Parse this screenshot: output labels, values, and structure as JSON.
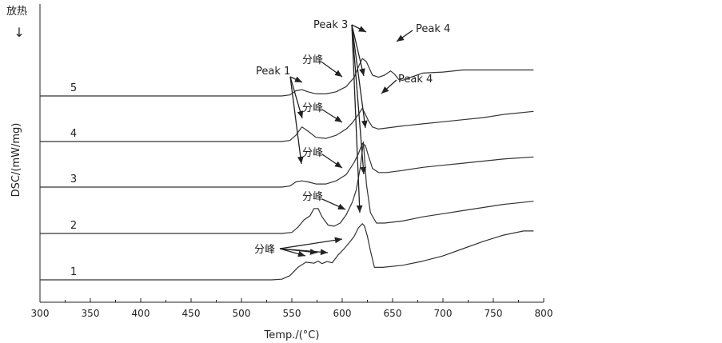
{
  "chart_data": {
    "type": "line",
    "title": "",
    "xlabel": "Temp./(°C)",
    "ylabel": "DSC/(mW/mg)",
    "exo_label": "放热",
    "exo_arrow_glyph": "↓",
    "xlim": [
      300,
      800
    ],
    "xticks": [
      300,
      350,
      400,
      450,
      500,
      550,
      600,
      650,
      700,
      750,
      800
    ],
    "yticks": [],
    "grid": false,
    "series": [
      {
        "name": "1",
        "x": [
          300,
          340,
          400,
          450,
          500,
          530,
          540,
          548,
          556,
          564,
          572,
          576,
          580,
          585,
          590,
          596,
          602,
          608,
          612,
          616,
          620,
          622,
          625,
          628,
          632,
          640,
          660,
          680,
          700,
          720,
          740,
          760,
          780,
          790
        ],
        "y": [
          0,
          0,
          0,
          0,
          0,
          0,
          0.03,
          0.2,
          0.6,
          0.85,
          0.8,
          0.9,
          0.78,
          0.88,
          0.82,
          1.2,
          1.5,
          1.85,
          2.1,
          2.5,
          2.7,
          2.6,
          2.1,
          1.4,
          0.6,
          0.6,
          0.7,
          0.9,
          1.15,
          1.5,
          1.85,
          2.15,
          2.35,
          2.35
        ]
      },
      {
        "name": "2",
        "x": [
          300,
          400,
          500,
          540,
          550,
          556,
          562,
          568,
          572,
          576,
          580,
          586,
          592,
          598,
          604,
          610,
          614,
          618,
          621,
          624,
          628,
          634,
          642,
          660,
          680,
          700,
          720,
          740,
          760,
          790
        ],
        "y": [
          0,
          0,
          0,
          0,
          0.05,
          0.3,
          0.65,
          0.85,
          1.2,
          1.2,
          0.8,
          0.4,
          0.35,
          0.5,
          0.9,
          1.5,
          2.1,
          3.2,
          4.4,
          2.4,
          1.0,
          0.5,
          0.5,
          0.6,
          0.8,
          0.95,
          1.1,
          1.25,
          1.4,
          1.55
        ]
      },
      {
        "name": "3",
        "x": [
          300,
          400,
          500,
          540,
          548,
          554,
          560,
          566,
          574,
          584,
          594,
          604,
          612,
          616,
          620,
          623,
          626,
          630,
          636,
          644,
          660,
          680,
          700,
          720,
          740,
          760,
          790
        ],
        "y": [
          0,
          0,
          0,
          0,
          0.05,
          0.25,
          0.3,
          0.25,
          0.15,
          0.15,
          0.3,
          0.6,
          1.2,
          1.6,
          2.1,
          2.0,
          1.5,
          0.9,
          0.7,
          0.7,
          0.8,
          0.95,
          1.05,
          1.15,
          1.25,
          1.35,
          1.45
        ]
      },
      {
        "name": "4",
        "x": [
          300,
          400,
          500,
          540,
          548,
          554,
          560,
          566,
          574,
          584,
          594,
          604,
          610,
          616,
          620,
          623,
          626,
          630,
          636,
          644,
          660,
          680,
          700,
          720,
          740,
          760,
          790
        ],
        "y": [
          0,
          0,
          0,
          0,
          0.05,
          0.3,
          0.7,
          0.5,
          0.2,
          0.15,
          0.3,
          0.6,
          0.9,
          1.3,
          1.6,
          1.3,
          1.0,
          0.7,
          0.6,
          0.65,
          0.75,
          0.85,
          0.95,
          1.05,
          1.15,
          1.3,
          1.45
        ]
      },
      {
        "name": "5",
        "x": [
          300,
          400,
          500,
          540,
          548,
          554,
          560,
          566,
          574,
          584,
          594,
          604,
          612,
          616,
          620,
          624,
          630,
          636,
          642,
          648,
          652,
          656,
          660,
          668,
          680,
          700,
          720,
          740,
          760,
          790
        ],
        "y": [
          0,
          0,
          0,
          0,
          0.05,
          0.25,
          0.3,
          0.2,
          0.1,
          0.1,
          0.2,
          0.45,
          0.9,
          1.4,
          1.8,
          1.65,
          1.0,
          0.9,
          1.0,
          1.2,
          1.05,
          0.8,
          0.75,
          0.9,
          1.1,
          1.15,
          1.25,
          1.25,
          1.25,
          1.25
        ]
      }
    ],
    "annotations": {
      "peak1": "Peak 1",
      "peak3": "Peak 3",
      "peak4_upper": "Peak 4",
      "peak4_lower": "Peak 4",
      "fenfeng": "分峰"
    }
  }
}
